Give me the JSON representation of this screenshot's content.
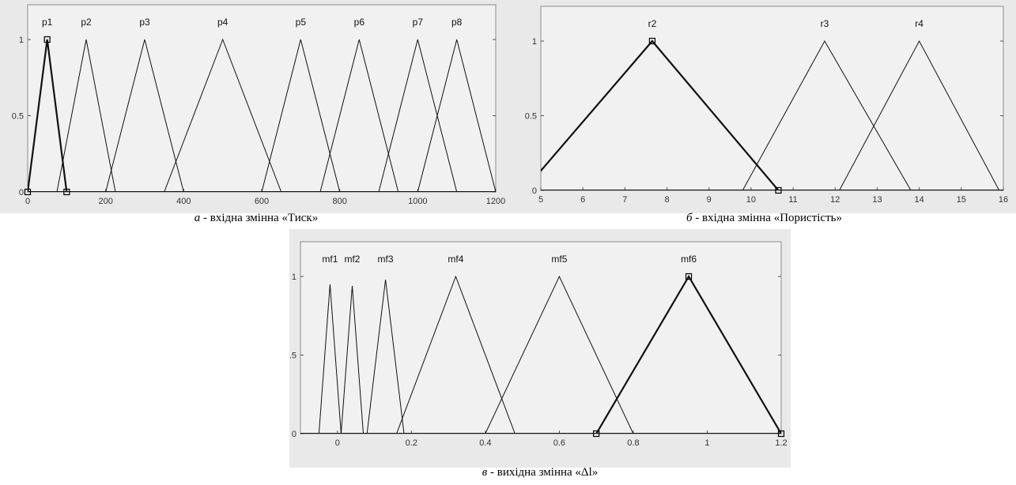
{
  "chart_data": [
    {
      "type": "line",
      "subtype": "membership-functions",
      "title": "",
      "xlim": [
        0,
        1200
      ],
      "ylim": [
        0,
        1
      ],
      "xticks": [
        0,
        200,
        400,
        600,
        800,
        1000,
        1200
      ],
      "xtick_labels": [
        "0",
        "200",
        "400",
        "600",
        "800",
        "1000",
        "1200"
      ],
      "yticks": [
        0,
        0.5,
        1
      ],
      "ytick_labels": [
        "0",
        "0.5",
        "1"
      ],
      "grid": false,
      "background": "#f1f1f1",
      "selected": "p1",
      "series": [
        {
          "name": "p1",
          "points": [
            [
              0,
              0
            ],
            [
              50,
              1
            ],
            [
              100,
              0
            ]
          ]
        },
        {
          "name": "p2",
          "points": [
            [
              75,
              0
            ],
            [
              150,
              1
            ],
            [
              225,
              0
            ]
          ]
        },
        {
          "name": "p3",
          "points": [
            [
              200,
              0
            ],
            [
              300,
              1
            ],
            [
              400,
              0
            ]
          ]
        },
        {
          "name": "p4",
          "points": [
            [
              350,
              0
            ],
            [
              500,
              1
            ],
            [
              650,
              0
            ]
          ]
        },
        {
          "name": "p5",
          "points": [
            [
              600,
              0
            ],
            [
              700,
              1
            ],
            [
              800,
              0
            ]
          ]
        },
        {
          "name": "p6",
          "points": [
            [
              750,
              0
            ],
            [
              850,
              1
            ],
            [
              950,
              0
            ]
          ]
        },
        {
          "name": "p7",
          "points": [
            [
              900,
              0
            ],
            [
              1000,
              1
            ],
            [
              1100,
              0
            ]
          ]
        },
        {
          "name": "p8",
          "points": [
            [
              1000,
              0
            ],
            [
              1100,
              1
            ],
            [
              1200,
              0
            ]
          ]
        }
      ],
      "handles": [
        [
          0,
          0
        ],
        [
          50,
          1
        ],
        [
          100,
          0
        ]
      ],
      "caption": {
        "letter": "а",
        "text": " - вхідна змінна «Тиск»"
      }
    },
    {
      "type": "line",
      "subtype": "membership-functions",
      "title": "",
      "xlim": [
        5,
        16
      ],
      "ylim": [
        0,
        1
      ],
      "xticks": [
        5,
        6,
        7,
        8,
        9,
        10,
        11,
        12,
        13,
        14,
        15,
        16
      ],
      "xtick_labels": [
        "5",
        "6",
        "7",
        "8",
        "9",
        "10",
        "11",
        "12",
        "13",
        "14",
        "15",
        "16"
      ],
      "yticks": [
        0,
        0.5,
        1
      ],
      "ytick_labels": [
        "0",
        "0.5",
        "1"
      ],
      "grid": false,
      "background": "#f1f1f1",
      "selected": "r2",
      "series": [
        {
          "name": "r2",
          "points": [
            [
              4.6,
              0
            ],
            [
              7.65,
              1
            ],
            [
              10.65,
              0
            ]
          ]
        },
        {
          "name": "r3",
          "points": [
            [
              9.8,
              0
            ],
            [
              11.75,
              1
            ],
            [
              13.8,
              0
            ]
          ]
        },
        {
          "name": "r4",
          "points": [
            [
              12.1,
              0
            ],
            [
              14,
              1
            ],
            [
              15.9,
              0
            ]
          ]
        }
      ],
      "handles": [
        [
          7.65,
          1
        ],
        [
          10.65,
          0
        ]
      ],
      "caption": {
        "letter": "б",
        "text": " - вхідна змінна «Пористість»"
      }
    },
    {
      "type": "line",
      "subtype": "membership-functions",
      "title": "",
      "xlim": [
        -0.1,
        1.2
      ],
      "ylim": [
        0,
        1
      ],
      "xticks": [
        0,
        0.2,
        0.4,
        0.6,
        0.8,
        1,
        1.2
      ],
      "xtick_labels": [
        "0",
        "0.2",
        "0.4",
        "0.6",
        "0.8",
        "1",
        "1.2"
      ],
      "yticks": [
        0,
        0.5,
        1
      ],
      "ytick_labels": [
        "0",
        "0.5",
        "1"
      ],
      "grid": false,
      "background": "#f1f1f1",
      "selected": "mf6",
      "series": [
        {
          "name": "mf1",
          "points": [
            [
              -0.05,
              0
            ],
            [
              -0.02,
              0.95
            ],
            [
              0.01,
              0
            ]
          ]
        },
        {
          "name": "mf2",
          "points": [
            [
              0.01,
              0
            ],
            [
              0.04,
              0.94
            ],
            [
              0.07,
              0
            ]
          ]
        },
        {
          "name": "mf3",
          "points": [
            [
              0.08,
              0
            ],
            [
              0.13,
              0.98
            ],
            [
              0.18,
              0
            ]
          ]
        },
        {
          "name": "mf4",
          "points": [
            [
              0.16,
              0
            ],
            [
              0.32,
              1
            ],
            [
              0.48,
              0
            ]
          ]
        },
        {
          "name": "mf5",
          "points": [
            [
              0.4,
              0
            ],
            [
              0.6,
              1
            ],
            [
              0.8,
              0
            ]
          ]
        },
        {
          "name": "mf6",
          "points": [
            [
              0.7,
              0
            ],
            [
              0.95,
              1
            ],
            [
              1.2,
              0
            ]
          ]
        }
      ],
      "handles": [
        [
          0.7,
          0
        ],
        [
          0.95,
          1
        ],
        [
          1.2,
          0
        ]
      ],
      "caption": {
        "letter": "в",
        "text": " - вихідна змінна «Δl»"
      }
    }
  ]
}
